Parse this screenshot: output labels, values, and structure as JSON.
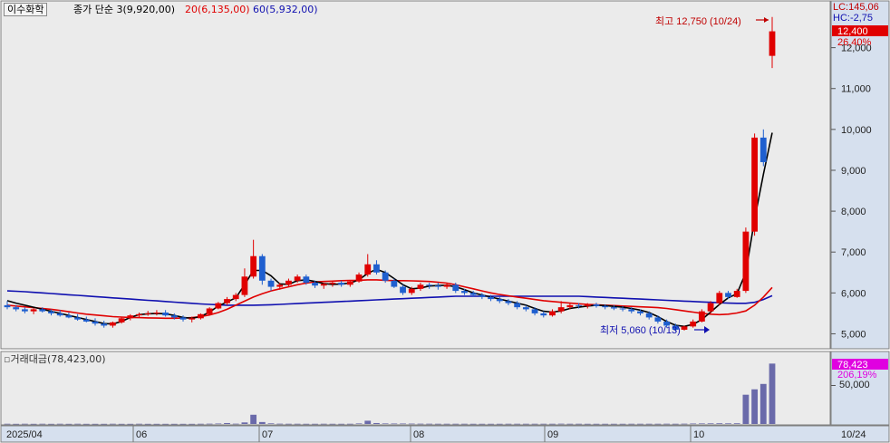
{
  "stock_name": "이수화학",
  "legend": {
    "ma3": "종가 단순 3(9,920,00)",
    "ma20": "20(6,135,00)",
    "ma60": "60(5,932,00)",
    "ma3_color": "#000000",
    "ma20_color": "#e00000",
    "ma60_color": "#1010b0"
  },
  "right_axis": {
    "lc_label": "LC:145,06",
    "hc_label": "HC:-2,75",
    "current_price_badge": "12,400",
    "change_pct_badge": "26,40%",
    "badge_color": "#e00000"
  },
  "annotations": {
    "high": "최고 12,750 (10/24)",
    "low": "최저 5,060 (10/13)"
  },
  "volume_panel": {
    "legend": "거래대금(78,423,00)",
    "current_badge": "78,423",
    "change_pct_badge": "206,19%",
    "badge_color": "#e000e0",
    "ytick_label": "50,000"
  },
  "colors": {
    "up": "#e00000",
    "down": "#1f5fcf",
    "volume": "#6a6aaa",
    "background": "#ebebeb",
    "axis_bg": "#d6e0ee"
  },
  "chart_data": {
    "type": "candlestick",
    "y_ticks": [
      5000,
      6000,
      7000,
      8000,
      9000,
      10000,
      11000,
      12000
    ],
    "y_tick_labels": [
      "5,000",
      "6,000",
      "7,000",
      "8,000",
      "9,000",
      "10,000",
      "11,000",
      "12,000"
    ],
    "ylim": [
      4700,
      12900
    ],
    "x_labels": [
      "2025/04",
      "06",
      "07",
      "08",
      "09",
      "10",
      "10/24"
    ],
    "vol_ylim": [
      0,
      80000
    ],
    "vol_ytick": 50000,
    "candles": [
      [
        5700,
        5800,
        5600,
        5650
      ],
      [
        5650,
        5700,
        5550,
        5600
      ],
      [
        5600,
        5650,
        5500,
        5550
      ],
      [
        5550,
        5620,
        5480,
        5600
      ],
      [
        5600,
        5650,
        5520,
        5550
      ],
      [
        5550,
        5600,
        5450,
        5500
      ],
      [
        5500,
        5580,
        5420,
        5450
      ],
      [
        5450,
        5520,
        5380,
        5400
      ],
      [
        5400,
        5480,
        5320,
        5350
      ],
      [
        5350,
        5420,
        5280,
        5300
      ],
      [
        5300,
        5380,
        5200,
        5250
      ],
      [
        5250,
        5320,
        5150,
        5200
      ],
      [
        5200,
        5300,
        5150,
        5280
      ],
      [
        5280,
        5400,
        5250,
        5380
      ],
      [
        5380,
        5480,
        5330,
        5450
      ],
      [
        5450,
        5520,
        5400,
        5480
      ],
      [
        5480,
        5560,
        5440,
        5500
      ],
      [
        5500,
        5580,
        5450,
        5520
      ],
      [
        5520,
        5580,
        5420,
        5450
      ],
      [
        5450,
        5500,
        5350,
        5400
      ],
      [
        5400,
        5450,
        5300,
        5350
      ],
      [
        5350,
        5420,
        5280,
        5380
      ],
      [
        5380,
        5500,
        5350,
        5480
      ],
      [
        5480,
        5650,
        5450,
        5620
      ],
      [
        5620,
        5780,
        5600,
        5750
      ],
      [
        5750,
        5900,
        5700,
        5850
      ],
      [
        5850,
        6000,
        5800,
        5950
      ],
      [
        5950,
        6600,
        5900,
        6400
      ],
      [
        6400,
        7300,
        6350,
        6900
      ],
      [
        6900,
        6950,
        6200,
        6300
      ],
      [
        6300,
        6350,
        6050,
        6150
      ],
      [
        6150,
        6250,
        6080,
        6200
      ],
      [
        6200,
        6350,
        6150,
        6300
      ],
      [
        6300,
        6450,
        6250,
        6400
      ],
      [
        6400,
        6450,
        6200,
        6250
      ],
      [
        6250,
        6300,
        6120,
        6180
      ],
      [
        6180,
        6250,
        6100,
        6220
      ],
      [
        6220,
        6300,
        6150,
        6250
      ],
      [
        6250,
        6300,
        6150,
        6200
      ],
      [
        6200,
        6300,
        6150,
        6280
      ],
      [
        6280,
        6500,
        6250,
        6450
      ],
      [
        6450,
        6950,
        6400,
        6700
      ],
      [
        6700,
        6800,
        6450,
        6500
      ],
      [
        6500,
        6550,
        6250,
        6300
      ],
      [
        6300,
        6350,
        6120,
        6150
      ],
      [
        6150,
        6200,
        5950,
        6000
      ],
      [
        6000,
        6150,
        5950,
        6100
      ],
      [
        6100,
        6250,
        6050,
        6200
      ],
      [
        6200,
        6250,
        6100,
        6180
      ],
      [
        6180,
        6250,
        6080,
        6150
      ],
      [
        6150,
        6250,
        6100,
        6200
      ],
      [
        6200,
        6250,
        6000,
        6050
      ],
      [
        6050,
        6100,
        5950,
        6000
      ],
      [
        6000,
        6050,
        5900,
        5950
      ],
      [
        5950,
        6000,
        5850,
        5900
      ],
      [
        5900,
        5950,
        5800,
        5850
      ],
      [
        5850,
        5900,
        5750,
        5800
      ],
      [
        5800,
        5850,
        5700,
        5750
      ],
      [
        5750,
        5800,
        5600,
        5650
      ],
      [
        5650,
        5700,
        5550,
        5600
      ],
      [
        5600,
        5650,
        5450,
        5500
      ],
      [
        5500,
        5550,
        5400,
        5450
      ],
      [
        5450,
        5600,
        5420,
        5550
      ],
      [
        5550,
        5800,
        5500,
        5650
      ],
      [
        5650,
        5750,
        5600,
        5700
      ],
      [
        5700,
        5750,
        5620,
        5680
      ],
      [
        5680,
        5750,
        5620,
        5720
      ],
      [
        5720,
        5760,
        5640,
        5680
      ],
      [
        5680,
        5720,
        5600,
        5650
      ],
      [
        5650,
        5700,
        5580,
        5620
      ],
      [
        5620,
        5680,
        5550,
        5600
      ],
      [
        5600,
        5650,
        5500,
        5550
      ],
      [
        5550,
        5600,
        5450,
        5500
      ],
      [
        5500,
        5550,
        5350,
        5400
      ],
      [
        5400,
        5450,
        5250,
        5300
      ],
      [
        5300,
        5350,
        5150,
        5200
      ],
      [
        5200,
        5250,
        5060,
        5100
      ],
      [
        5100,
        5200,
        5080,
        5180
      ],
      [
        5180,
        5350,
        5150,
        5300
      ],
      [
        5300,
        5600,
        5280,
        5550
      ],
      [
        5550,
        5800,
        5500,
        5750
      ],
      [
        5750,
        6050,
        5700,
        6000
      ],
      [
        6000,
        6050,
        5850,
        5900
      ],
      [
        5900,
        6100,
        5880,
        6050
      ],
      [
        6050,
        7600,
        6000,
        7500
      ],
      [
        7500,
        9900,
        7400,
        9800
      ],
      [
        9800,
        10000,
        9100,
        9200
      ],
      [
        11800,
        12750,
        11500,
        12400
      ]
    ],
    "ma3": [
      5810,
      5750,
      5700,
      5650,
      5600,
      5550,
      5500,
      5450,
      5400,
      5350,
      5300,
      5250,
      5240,
      5300,
      5400,
      5470,
      5490,
      5500,
      5490,
      5450,
      5400,
      5380,
      5420,
      5530,
      5680,
      5780,
      5880,
      6200,
      6550,
      6550,
      6420,
      6220,
      6210,
      6300,
      6320,
      6280,
      6230,
      6210,
      6220,
      6240,
      6320,
      6480,
      6580,
      6500,
      6350,
      6200,
      6100,
      6120,
      6170,
      6180,
      6190,
      6150,
      6080,
      6000,
      5950,
      5900,
      5850,
      5800,
      5750,
      5700,
      5620,
      5550,
      5530,
      5560,
      5620,
      5650,
      5680,
      5700,
      5690,
      5670,
      5650,
      5620,
      5580,
      5520,
      5420,
      5300,
      5210,
      5180,
      5230,
      5350,
      5530,
      5720,
      5880,
      5980,
      6500,
      7800,
      8900,
      9920
    ],
    "ma20": [
      5700,
      5680,
      5660,
      5640,
      5620,
      5600,
      5570,
      5540,
      5510,
      5480,
      5460,
      5440,
      5420,
      5410,
      5400,
      5395,
      5390,
      5385,
      5380,
      5380,
      5385,
      5395,
      5420,
      5460,
      5520,
      5600,
      5700,
      5800,
      5900,
      5980,
      6050,
      6100,
      6150,
      6200,
      6240,
      6270,
      6280,
      6290,
      6300,
      6305,
      6310,
      6320,
      6320,
      6310,
      6300,
      6300,
      6295,
      6290,
      6280,
      6260,
      6240,
      6200,
      6150,
      6100,
      6050,
      6000,
      5960,
      5930,
      5900,
      5870,
      5840,
      5810,
      5790,
      5770,
      5750,
      5735,
      5720,
      5710,
      5700,
      5690,
      5680,
      5670,
      5660,
      5650,
      5640,
      5620,
      5590,
      5560,
      5530,
      5500,
      5480,
      5470,
      5480,
      5510,
      5560,
      5700,
      5900,
      6135
    ],
    "ma60": [
      6050,
      6040,
      6030,
      6015,
      6000,
      5985,
      5970,
      5955,
      5940,
      5925,
      5910,
      5895,
      5880,
      5865,
      5850,
      5835,
      5820,
      5805,
      5790,
      5775,
      5760,
      5745,
      5730,
      5720,
      5710,
      5700,
      5700,
      5700,
      5700,
      5705,
      5710,
      5720,
      5730,
      5740,
      5750,
      5760,
      5770,
      5780,
      5790,
      5800,
      5810,
      5820,
      5830,
      5840,
      5850,
      5860,
      5870,
      5880,
      5890,
      5900,
      5910,
      5920,
      5920,
      5920,
      5920,
      5920,
      5920,
      5920,
      5920,
      5920,
      5920,
      5920,
      5920,
      5920,
      5920,
      5920,
      5910,
      5900,
      5890,
      5880,
      5870,
      5860,
      5850,
      5840,
      5830,
      5820,
      5810,
      5800,
      5790,
      5780,
      5770,
      5760,
      5750,
      5745,
      5745,
      5770,
      5840,
      5932
    ],
    "volume": [
      300,
      200,
      300,
      200,
      300,
      200,
      300,
      200,
      300,
      200,
      200,
      200,
      300,
      200,
      200,
      300,
      200,
      200,
      200,
      200,
      200,
      200,
      300,
      400,
      600,
      1200,
      400,
      2000,
      12000,
      2500,
      800,
      400,
      300,
      300,
      250,
      250,
      300,
      250,
      250,
      300,
      700,
      4200,
      1200,
      700,
      600,
      600,
      500,
      400,
      350,
      300,
      300,
      300,
      300,
      250,
      250,
      250,
      250,
      300,
      300,
      300,
      300,
      300,
      300,
      400,
      300,
      300,
      250,
      250,
      250,
      250,
      250,
      300,
      300,
      300,
      300,
      350,
      300,
      400,
      600,
      700,
      800,
      900,
      800,
      900,
      38000,
      45000,
      52000,
      78423
    ]
  }
}
